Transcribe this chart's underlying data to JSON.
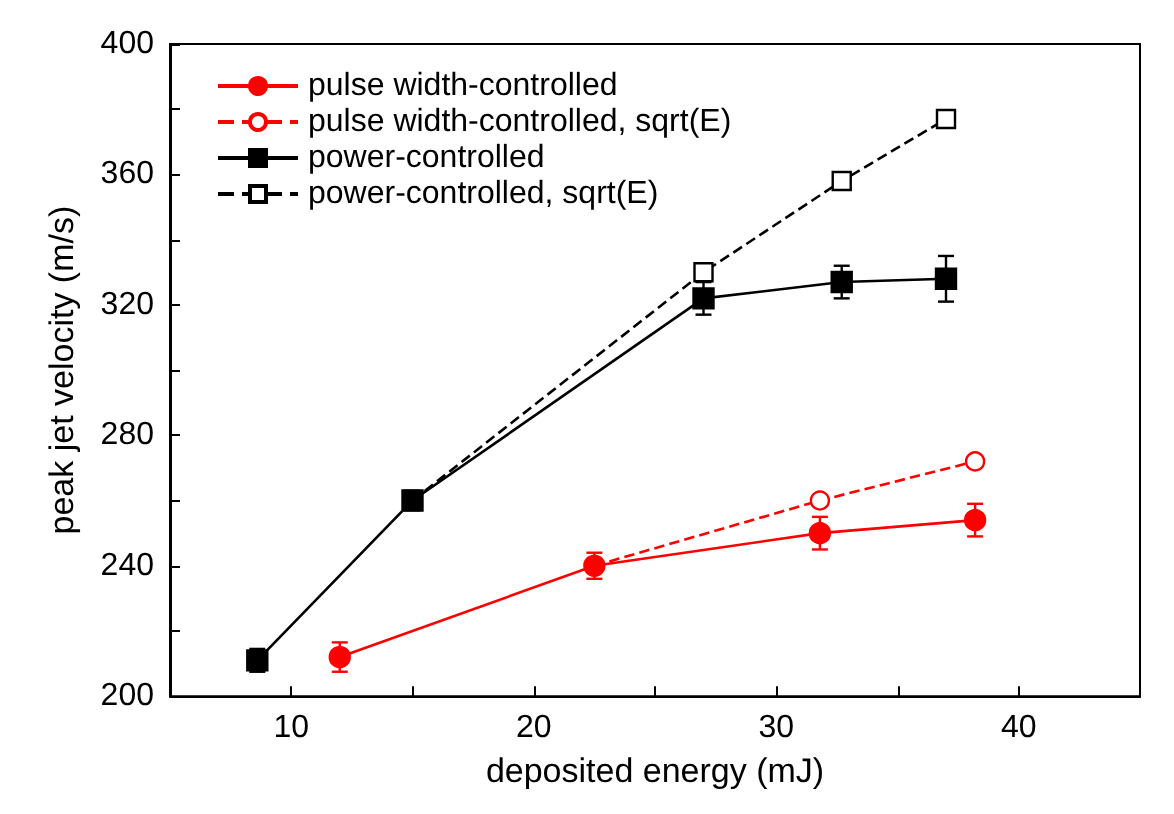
{
  "chart_data": {
    "type": "line",
    "xlabel": "deposited energy (mJ)",
    "ylabel": "peak jet velocity (m/s)",
    "xlim": [
      5,
      45
    ],
    "xticks": [
      10,
      {
        "value": 15,
        "label": null
      },
      20,
      {
        "value": 25,
        "label": null
      },
      30,
      {
        "value": 35,
        "label": null
      },
      40
    ],
    "ylim": [
      200,
      400
    ],
    "yticks": [
      200,
      {
        "value": 220,
        "label": null
      },
      240,
      {
        "value": 260,
        "label": null
      },
      280,
      {
        "value": 300,
        "label": null
      },
      320,
      {
        "value": 340,
        "label": null
      },
      360,
      {
        "value": 380,
        "label": null
      },
      400
    ],
    "grid": false,
    "legend": "top left",
    "series": [
      {
        "name": "pulse width-controlled",
        "color": "#ff0000",
        "marker": "circle",
        "line_style": "solid",
        "x": [
          12,
          22.5,
          31.8,
          38.2
        ],
        "values": [
          212,
          240,
          250,
          254
        ],
        "errors": [
          4.5,
          4,
          5,
          5
        ]
      },
      {
        "name": "pulse width-controlled, sqrt(E)",
        "color": "#ff0000",
        "marker": "circle",
        "line_style": "dashed",
        "x": [
          22.5,
          31.8,
          38.2
        ],
        "values": [
          240,
          260,
          272
        ]
      },
      {
        "name": "power-controlled",
        "color": "#000000",
        "marker": "square",
        "line_style": "solid",
        "x": [
          8.6,
          15,
          27,
          32.7,
          37
        ],
        "values": [
          211,
          260,
          322,
          327,
          328
        ],
        "errors": [
          3.5,
          3,
          5,
          5,
          7
        ]
      },
      {
        "name": "power-controlled, sqrt(E)",
        "color": "#000000",
        "marker": "square",
        "line_style": "dashed",
        "x": [
          15,
          27,
          32.7,
          37
        ],
        "values": [
          260,
          330,
          358,
          377
        ]
      }
    ]
  }
}
